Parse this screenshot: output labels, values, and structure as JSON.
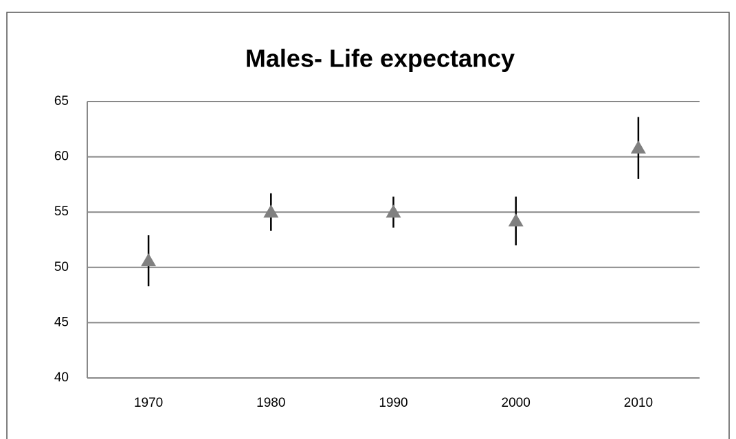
{
  "chart_data": {
    "type": "errorbar-scatter",
    "title": "Males- Life expectancy",
    "categories": [
      "1970",
      "1980",
      "1990",
      "2000",
      "2010"
    ],
    "values": [
      50.6,
      55.0,
      55.0,
      54.2,
      60.8
    ],
    "errors": [
      2.3,
      1.7,
      1.4,
      2.2,
      2.8
    ],
    "color": "#808080",
    "error_color": "#000000",
    "ylim": [
      40,
      65
    ],
    "yticks": [
      40,
      45,
      50,
      55,
      60,
      65
    ],
    "grid": true
  }
}
